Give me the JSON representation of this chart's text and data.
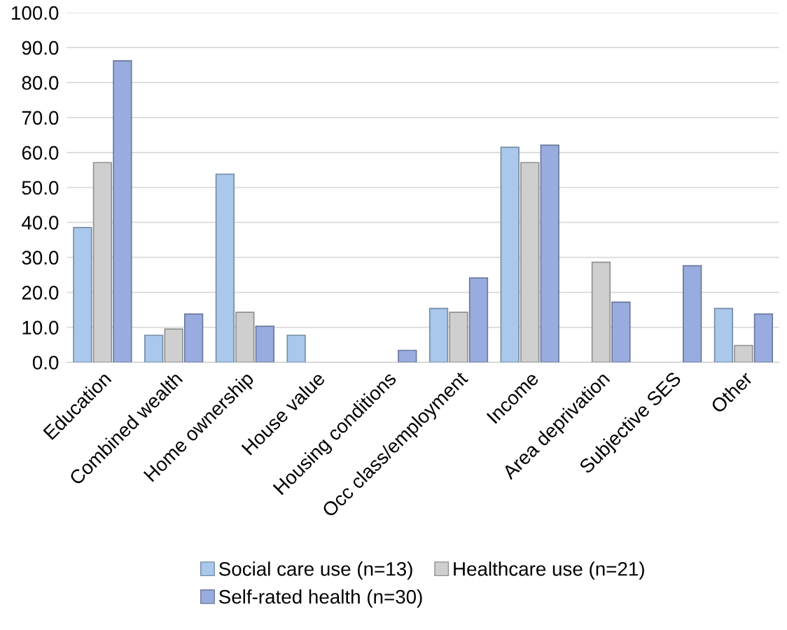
{
  "chart_data": {
    "type": "bar",
    "categories": [
      "Education",
      "Combined wealth",
      "Home ownership",
      "House value",
      "Housing conditions",
      "Occ class/employment",
      "Income",
      "Area deprivation",
      "Subjective SES",
      "Other"
    ],
    "series": [
      {
        "name": "Social care use (n=13)",
        "color": "#a9c8eb",
        "values": [
          38.5,
          7.7,
          53.8,
          7.7,
          0,
          15.4,
          61.5,
          0,
          0,
          15.4
        ]
      },
      {
        "name": "Healthcare use (n=21)",
        "color": "#cfcfcf",
        "values": [
          57.1,
          9.5,
          14.3,
          0,
          0,
          14.3,
          57.1,
          28.6,
          0,
          4.8
        ]
      },
      {
        "name": "Self-rated health (n=30)",
        "color": "#99acdf",
        "values": [
          86.2,
          13.8,
          10.3,
          0,
          3.4,
          24.1,
          62.1,
          17.2,
          27.6,
          13.8
        ]
      }
    ],
    "ylim": [
      0,
      100
    ],
    "yticks": [
      {
        "value": 0,
        "label": "0.0"
      },
      {
        "value": 10,
        "label": "10.0"
      },
      {
        "value": 20,
        "label": "20.0"
      },
      {
        "value": 30,
        "label": "30.0"
      },
      {
        "value": 40,
        "label": "40.0"
      },
      {
        "value": 50,
        "label": "50.0"
      },
      {
        "value": 60,
        "label": "60.0"
      },
      {
        "value": 70,
        "label": "70.0"
      },
      {
        "value": 80,
        "label": "80.0"
      },
      {
        "value": 90,
        "label": "90.0"
      },
      {
        "value": 100,
        "label": "100.0"
      }
    ],
    "grid": "y",
    "legend": "bottom"
  }
}
